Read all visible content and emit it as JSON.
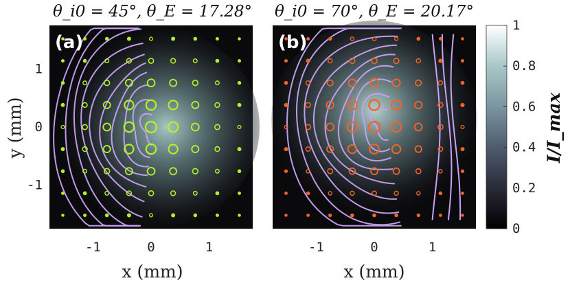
{
  "chart_data": [
    {
      "type": "scatter",
      "panel_label": "(a)",
      "title": "θ_i0 = 45°, θ_E = 17.28°",
      "xlabel": "x (mm)",
      "ylabel": "y (mm)",
      "xlim": [
        -1.75,
        1.75
      ],
      "ylim": [
        -1.75,
        1.75
      ],
      "xticks": [
        "-1",
        "0",
        "1"
      ],
      "yticks": [
        "-1",
        "0",
        "1"
      ],
      "marker_color": "#b3ef2a",
      "streamline_color": "#c8a2f3",
      "grid_spacing_mm": 0.38,
      "grid_range_mm": [
        -1.52,
        1.52
      ],
      "marker_intensity_peak_x_mm": 0.0,
      "marker_intensity_peak_y_mm": 0.0,
      "flow": "streamlines bend around a focus right of center, opening to the left"
    },
    {
      "type": "scatter",
      "panel_label": "(b)",
      "title": "θ_i0 = 70°, θ_E = 20.17°",
      "xlabel": "x (mm)",
      "ylabel": "",
      "xlim": [
        -1.75,
        1.75
      ],
      "ylim": [
        -1.75,
        1.75
      ],
      "xticks": [
        "-1",
        "0",
        "1"
      ],
      "yticks": [],
      "marker_color": "#f0642a",
      "streamline_color": "#c8a2f3",
      "grid_spacing_mm": 0.38,
      "grid_range_mm": [
        -1.52,
        1.52
      ],
      "marker_intensity_peak_x_mm": 0.0,
      "marker_intensity_peak_y_mm": 0.1,
      "flow": "streamlines converge toward a focus right of center, opening to the left"
    }
  ],
  "colorbar": {
    "label": "I/I_max",
    "ticks": [
      "0",
      "0.2",
      "0.4",
      "0.6",
      "0.8",
      "1"
    ],
    "range": [
      0,
      1
    ],
    "colormap": "bone"
  },
  "colors": {
    "panel_background": "#0a0a0c",
    "glow_center": "#b8dcd8"
  }
}
